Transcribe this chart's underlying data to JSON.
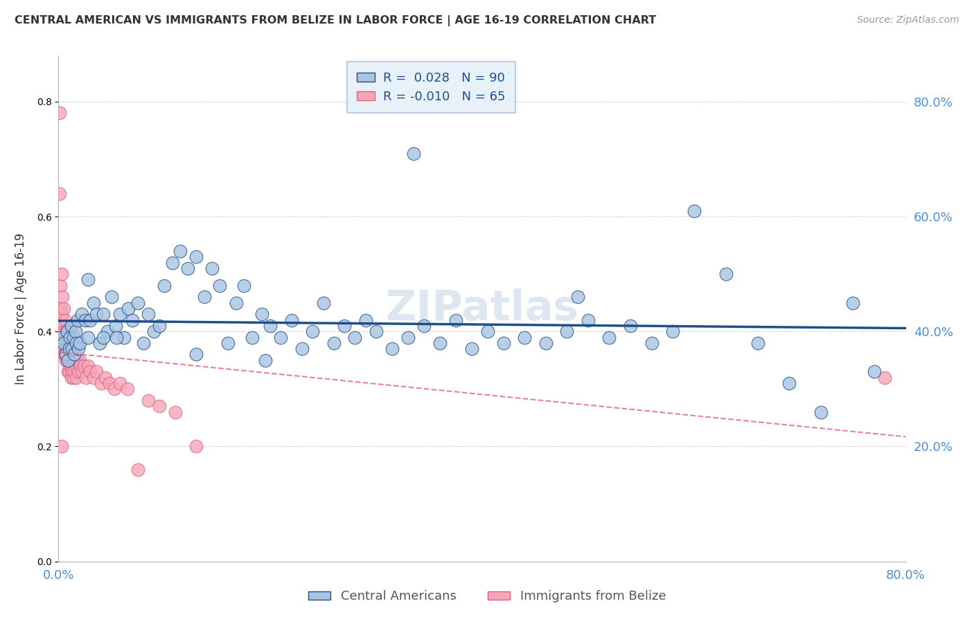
{
  "title": "CENTRAL AMERICAN VS IMMIGRANTS FROM BELIZE IN LABOR FORCE | AGE 16-19 CORRELATION CHART",
  "source": "Source: ZipAtlas.com",
  "ylabel": "In Labor Force | Age 16-19",
  "xlim": [
    0.0,
    0.8
  ],
  "ylim": [
    0.0,
    0.88
  ],
  "ytick_vals": [
    0.0,
    0.2,
    0.4,
    0.6,
    0.8
  ],
  "xtick_vals": [
    0.0,
    0.1,
    0.2,
    0.3,
    0.4,
    0.5,
    0.6,
    0.7,
    0.8
  ],
  "blue_R": 0.028,
  "blue_N": 90,
  "pink_R": -0.01,
  "pink_N": 65,
  "blue_color": "#a8c4e0",
  "blue_line_color": "#1f4e8c",
  "pink_color": "#f4a7b9",
  "pink_line_color": "#e06080",
  "background_color": "#ffffff",
  "grid_color": "#cccccc",
  "blue_scatter_x": [
    0.003,
    0.005,
    0.007,
    0.008,
    0.009,
    0.01,
    0.011,
    0.012,
    0.013,
    0.014,
    0.015,
    0.016,
    0.017,
    0.018,
    0.019,
    0.02,
    0.022,
    0.025,
    0.028,
    0.03,
    0.033,
    0.036,
    0.039,
    0.042,
    0.046,
    0.05,
    0.054,
    0.058,
    0.062,
    0.066,
    0.07,
    0.075,
    0.08,
    0.085,
    0.09,
    0.095,
    0.1,
    0.108,
    0.115,
    0.122,
    0.13,
    0.138,
    0.145,
    0.152,
    0.16,
    0.168,
    0.175,
    0.183,
    0.192,
    0.2,
    0.21,
    0.22,
    0.23,
    0.24,
    0.25,
    0.26,
    0.27,
    0.28,
    0.29,
    0.3,
    0.315,
    0.33,
    0.345,
    0.36,
    0.375,
    0.39,
    0.405,
    0.42,
    0.44,
    0.46,
    0.48,
    0.5,
    0.52,
    0.54,
    0.56,
    0.58,
    0.6,
    0.63,
    0.66,
    0.69,
    0.72,
    0.75,
    0.77,
    0.335,
    0.195,
    0.055,
    0.028,
    0.042,
    0.13,
    0.49
  ],
  "blue_scatter_y": [
    0.39,
    0.38,
    0.36,
    0.4,
    0.35,
    0.37,
    0.39,
    0.41,
    0.37,
    0.39,
    0.36,
    0.4,
    0.38,
    0.42,
    0.37,
    0.38,
    0.43,
    0.42,
    0.39,
    0.42,
    0.45,
    0.43,
    0.38,
    0.43,
    0.4,
    0.46,
    0.41,
    0.43,
    0.39,
    0.44,
    0.42,
    0.45,
    0.38,
    0.43,
    0.4,
    0.41,
    0.48,
    0.52,
    0.54,
    0.51,
    0.53,
    0.46,
    0.51,
    0.48,
    0.38,
    0.45,
    0.48,
    0.39,
    0.43,
    0.41,
    0.39,
    0.42,
    0.37,
    0.4,
    0.45,
    0.38,
    0.41,
    0.39,
    0.42,
    0.4,
    0.37,
    0.39,
    0.41,
    0.38,
    0.42,
    0.37,
    0.4,
    0.38,
    0.39,
    0.38,
    0.4,
    0.42,
    0.39,
    0.41,
    0.38,
    0.4,
    0.61,
    0.5,
    0.38,
    0.31,
    0.26,
    0.45,
    0.33,
    0.71,
    0.35,
    0.39,
    0.49,
    0.39,
    0.36,
    0.46
  ],
  "pink_scatter_x": [
    0.001,
    0.001,
    0.002,
    0.002,
    0.003,
    0.003,
    0.003,
    0.004,
    0.004,
    0.004,
    0.005,
    0.005,
    0.005,
    0.006,
    0.006,
    0.006,
    0.007,
    0.007,
    0.007,
    0.008,
    0.008,
    0.009,
    0.009,
    0.009,
    0.01,
    0.01,
    0.01,
    0.011,
    0.011,
    0.012,
    0.012,
    0.012,
    0.013,
    0.013,
    0.014,
    0.014,
    0.015,
    0.015,
    0.016,
    0.017,
    0.017,
    0.018,
    0.019,
    0.02,
    0.021,
    0.022,
    0.024,
    0.026,
    0.028,
    0.03,
    0.033,
    0.036,
    0.04,
    0.044,
    0.048,
    0.053,
    0.058,
    0.065,
    0.075,
    0.085,
    0.095,
    0.11,
    0.13,
    0.78,
    0.003
  ],
  "pink_scatter_y": [
    0.78,
    0.64,
    0.48,
    0.44,
    0.5,
    0.43,
    0.39,
    0.46,
    0.41,
    0.37,
    0.44,
    0.4,
    0.36,
    0.42,
    0.39,
    0.36,
    0.4,
    0.37,
    0.35,
    0.39,
    0.36,
    0.38,
    0.35,
    0.33,
    0.37,
    0.35,
    0.33,
    0.37,
    0.34,
    0.36,
    0.34,
    0.32,
    0.36,
    0.33,
    0.35,
    0.32,
    0.35,
    0.33,
    0.36,
    0.34,
    0.32,
    0.35,
    0.33,
    0.35,
    0.34,
    0.33,
    0.34,
    0.32,
    0.34,
    0.33,
    0.32,
    0.33,
    0.31,
    0.32,
    0.31,
    0.3,
    0.31,
    0.3,
    0.16,
    0.28,
    0.27,
    0.26,
    0.2,
    0.32,
    0.2
  ],
  "watermark": "ZIPatlas",
  "watermark_color": "#c8d8e8",
  "legend_box_color": "#e8f0f8",
  "legend_border_color": "#b0c4de"
}
